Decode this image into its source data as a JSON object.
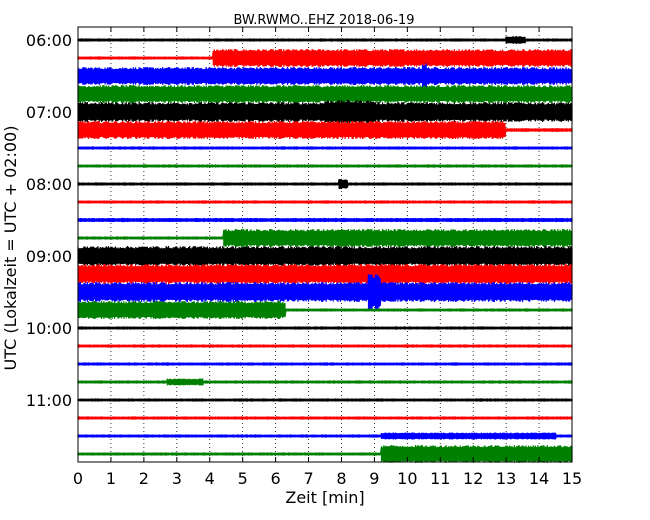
{
  "chart_data": {
    "type": "line",
    "title": "BW.RWMO..EHZ 2018-06-19",
    "xlabel": "Zeit  [min]",
    "ylabel": "UTC (Lokalzeit = UTC + 02:00)",
    "xlim": [
      0,
      15
    ],
    "x_ticks": [
      "0",
      "1",
      "2",
      "3",
      "4",
      "5",
      "6",
      "7",
      "8",
      "9",
      "10",
      "11",
      "12",
      "13",
      "14",
      "15"
    ],
    "y_tick_labels": [
      "06:00",
      "07:00",
      "08:00",
      "09:00",
      "10:00",
      "11:00"
    ],
    "grid": "vertical dotted",
    "series_colors": [
      "#000000",
      "#ff0000",
      "#0000ff",
      "#008000"
    ],
    "traces": [
      {
        "time": "06:00",
        "color": "#000000",
        "level": 0.15,
        "events": [
          {
            "start": 13.0,
            "end": 13.6,
            "level": 0.4
          }
        ]
      },
      {
        "time": "06:15",
        "color": "#ff0000",
        "level": 0.15,
        "events": [
          {
            "start": 4.1,
            "end": 15.0,
            "level": 0.9
          }
        ]
      },
      {
        "time": "06:30",
        "color": "#0000ff",
        "level": 0.9,
        "events": [
          {
            "start": 10.45,
            "end": 10.6,
            "level": 1.3
          }
        ]
      },
      {
        "time": "06:45",
        "color": "#008000",
        "level": 0.9,
        "events": []
      },
      {
        "time": "07:00",
        "color": "#000000",
        "level": 1.0,
        "events": [
          {
            "start": 7.5,
            "end": 9.0,
            "level": 1.2
          }
        ]
      },
      {
        "time": "07:15",
        "color": "#ff0000",
        "level": 0.9,
        "events": [
          {
            "start": 13.0,
            "end": 15.0,
            "level": -0.7
          }
        ]
      },
      {
        "time": "07:30",
        "color": "#0000ff",
        "level": 0.15,
        "events": []
      },
      {
        "time": "07:45",
        "color": "#008000",
        "level": 0.15,
        "events": []
      },
      {
        "time": "08:00",
        "color": "#000000",
        "level": 0.15,
        "events": [
          {
            "start": 7.9,
            "end": 8.2,
            "level": 0.5
          }
        ]
      },
      {
        "time": "08:15",
        "color": "#ff0000",
        "level": 0.15,
        "events": []
      },
      {
        "time": "08:30",
        "color": "#0000ff",
        "level": 0.2,
        "events": []
      },
      {
        "time": "08:45",
        "color": "#008000",
        "level": 0.15,
        "events": [
          {
            "start": 4.4,
            "end": 15.0,
            "level": 0.9
          }
        ]
      },
      {
        "time": "09:00",
        "color": "#000000",
        "level": 1.0,
        "events": []
      },
      {
        "time": "09:15",
        "color": "#ff0000",
        "level": 1.0,
        "events": []
      },
      {
        "time": "09:30",
        "color": "#0000ff",
        "level": 1.0,
        "events": [
          {
            "start": 8.8,
            "end": 9.2,
            "level": 1.8
          }
        ]
      },
      {
        "time": "09:45",
        "color": "#008000",
        "level": 0.15,
        "events": [
          {
            "start": 0.0,
            "end": 6.3,
            "level": 0.9
          }
        ]
      },
      {
        "time": "10:00",
        "color": "#000000",
        "level": 0.15,
        "events": []
      },
      {
        "time": "10:15",
        "color": "#ff0000",
        "level": 0.15,
        "events": []
      },
      {
        "time": "10:30",
        "color": "#0000ff",
        "level": 0.15,
        "events": []
      },
      {
        "time": "10:45",
        "color": "#008000",
        "level": 0.15,
        "events": [
          {
            "start": 2.7,
            "end": 3.8,
            "level": 0.35
          }
        ]
      },
      {
        "time": "11:00",
        "color": "#000000",
        "level": 0.15,
        "events": []
      },
      {
        "time": "11:15",
        "color": "#ff0000",
        "level": 0.15,
        "events": []
      },
      {
        "time": "11:30",
        "color": "#0000ff",
        "level": 0.15,
        "events": [
          {
            "start": 9.2,
            "end": 14.5,
            "level": 0.35
          }
        ]
      },
      {
        "time": "11:45",
        "color": "#008000",
        "level": 0.15,
        "events": [
          {
            "start": 9.2,
            "end": 15.0,
            "level": 0.9
          }
        ]
      }
    ]
  }
}
